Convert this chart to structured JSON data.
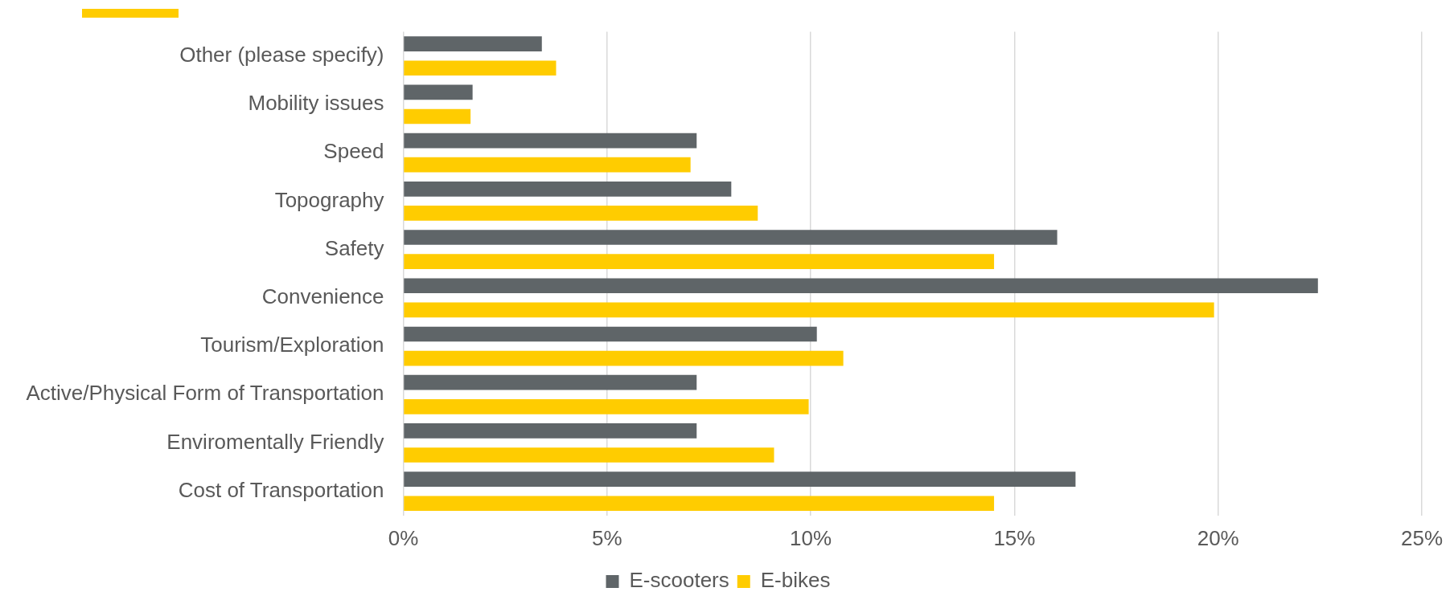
{
  "chart_data": {
    "type": "bar",
    "orientation": "horizontal",
    "categories": [
      "Other (please specify)",
      "Mobility issues",
      "Speed",
      "Topography",
      "Safety",
      "Convenience",
      "Tourism/Exploration",
      "Active/Physical Form of Transportation",
      "Enviromentally Friendly",
      "Cost of Transportation"
    ],
    "series": [
      {
        "name": "E-scooters",
        "color": "#5f6568",
        "values": [
          3.4,
          1.7,
          7.2,
          8.05,
          16.05,
          22.45,
          10.15,
          7.2,
          7.2,
          16.5
        ]
      },
      {
        "name": "E-bikes",
        "color": "#ffcc00",
        "values": [
          3.75,
          1.65,
          7.05,
          8.7,
          14.5,
          19.9,
          10.8,
          9.95,
          9.1,
          14.5
        ]
      }
    ],
    "xlim": [
      0,
      25
    ],
    "xticks": [
      {
        "value": 0,
        "label": "0%"
      },
      {
        "value": 5,
        "label": "5%"
      },
      {
        "value": 10,
        "label": "10%"
      },
      {
        "value": 15,
        "label": "15%"
      },
      {
        "value": 20,
        "label": "20%"
      },
      {
        "value": 25,
        "label": "25%"
      }
    ],
    "grid": "x",
    "legend": "bottom"
  }
}
